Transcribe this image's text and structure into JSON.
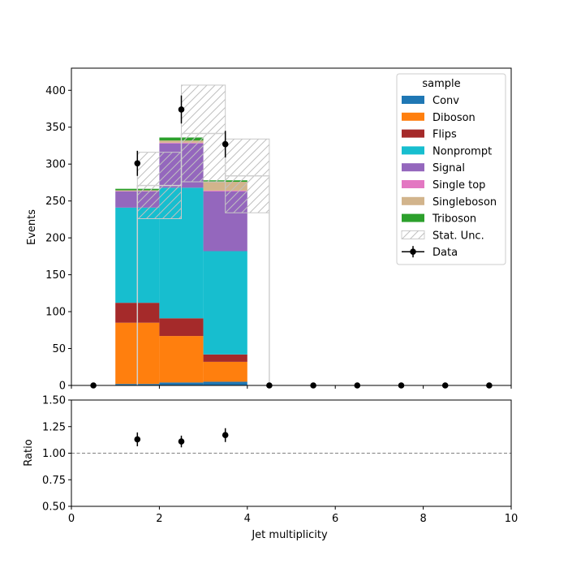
{
  "chart_data": {
    "type": "bar",
    "stacked": true,
    "bin_edges": [
      0,
      1,
      2,
      3,
      4,
      5,
      6,
      7,
      8,
      9,
      10
    ],
    "xlabel": "Jet multiplicity",
    "ylabel": "Events",
    "ratio_ylabel": "Ratio",
    "xlim": [
      0,
      10
    ],
    "ylim": [
      0,
      430
    ],
    "ratio_ylim": [
      0.5,
      1.5
    ],
    "x_ticks": [
      "0",
      "2",
      "4",
      "6",
      "8",
      "10"
    ],
    "y_ticks": [
      "0",
      "50",
      "100",
      "150",
      "200",
      "250",
      "300",
      "350",
      "400"
    ],
    "ratio_ticks": [
      "0.50",
      "0.75",
      "1.00",
      "1.25",
      "1.50"
    ],
    "legend_title": "sample",
    "legend_position": "top-right",
    "series": [
      {
        "name": "Conv",
        "color": "#1f77b4",
        "values": [
          0,
          2,
          4,
          5,
          0,
          0,
          0,
          0,
          0,
          0
        ]
      },
      {
        "name": "Diboson",
        "color": "#ff7f0e",
        "values": [
          0,
          83,
          63,
          27,
          0,
          0,
          0,
          0,
          0,
          0
        ]
      },
      {
        "name": "Flips",
        "color": "#a52a2a",
        "values": [
          0,
          27,
          24,
          10,
          0,
          0,
          0,
          0,
          0,
          0
        ]
      },
      {
        "name": "Nonprompt",
        "color": "#17becf",
        "values": [
          0,
          129,
          177,
          140,
          0,
          0,
          0,
          0,
          0,
          0
        ]
      },
      {
        "name": "Signal",
        "color": "#9467bd",
        "values": [
          0,
          22,
          60,
          81,
          0,
          0,
          0,
          0,
          0,
          0
        ]
      },
      {
        "name": "Single top",
        "color": "#e377c2",
        "values": [
          0,
          0.5,
          1,
          1,
          0,
          0,
          0,
          0,
          0,
          0
        ]
      },
      {
        "name": "Singleboson",
        "color": "#d2b48c",
        "values": [
          0,
          1,
          3,
          12,
          0,
          0,
          0,
          0,
          0,
          0
        ]
      },
      {
        "name": "Triboson",
        "color": "#2ca02c",
        "values": [
          0,
          2,
          4,
          2,
          0,
          0,
          0,
          0,
          0,
          0
        ]
      }
    ],
    "stat_unc": {
      "name": "Stat. Unc.",
      "bin_edges": [
        1.5,
        2.5,
        3.5,
        4.5
      ],
      "low": [
        226,
        276,
        234
      ],
      "high": [
        316,
        407,
        334
      ]
    },
    "data": {
      "name": "Data",
      "x": [
        0.5,
        1.5,
        2.5,
        3.5,
        4.5,
        5.5,
        6.5,
        7.5,
        8.5,
        9.5
      ],
      "y": [
        0,
        301,
        374,
        327,
        0,
        0,
        0,
        0,
        0,
        0
      ],
      "err": [
        0,
        17,
        19,
        18,
        0,
        0,
        0,
        0,
        0,
        0
      ]
    },
    "ratio": {
      "x": [
        1.5,
        2.5,
        3.5
      ],
      "y": [
        1.13,
        1.11,
        1.17
      ],
      "err": [
        0.065,
        0.055,
        0.065
      ],
      "reference": 1.0
    }
  }
}
